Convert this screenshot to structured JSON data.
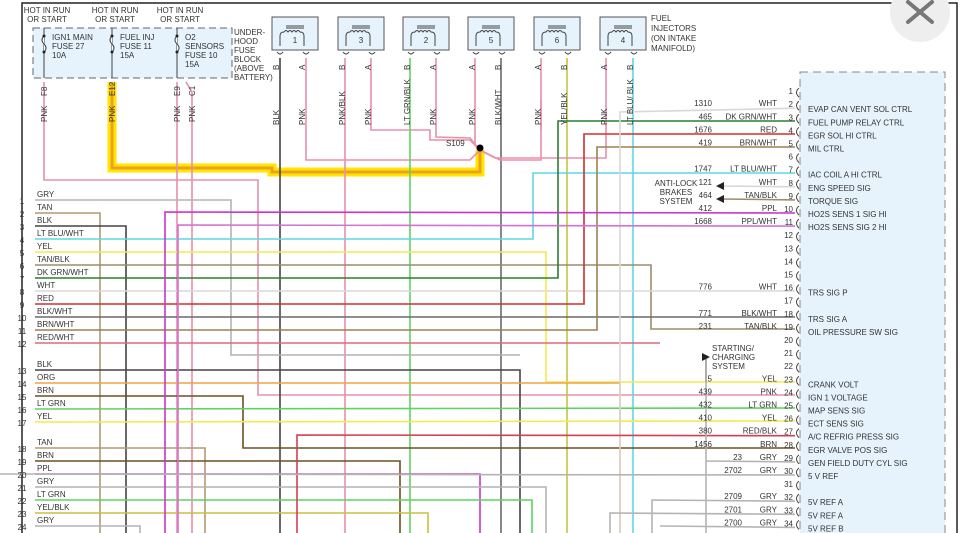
{
  "fuse_block": {
    "hot_labels": [
      [
        "HOT IN RUN",
        "OR START"
      ],
      [
        "HOT IN RUN",
        "OR START"
      ],
      [
        "HOT IN RUN",
        "OR START"
      ]
    ],
    "fuses": [
      {
        "lines": [
          "IGN1 MAIN",
          "FUSE 27",
          "10A"
        ]
      },
      {
        "lines": [
          "FUEL INJ",
          "FUSE 11",
          "15A"
        ]
      },
      {
        "lines": [
          "O2",
          "SENSORS",
          "FUSE 10",
          "15A"
        ]
      }
    ],
    "label": [
      "UNDER-",
      "HOOD",
      "FUSE",
      "BLOCK",
      "(ABOVE",
      "BATTERY)"
    ],
    "pins": [
      {
        "pin": "F8",
        "color": "PNK"
      },
      {
        "pin": "E12",
        "color": "PNK",
        "highlighted": true
      },
      {
        "pin": "E9",
        "color": "PNK"
      },
      {
        "pin": "C1",
        "color": "PNK"
      }
    ]
  },
  "injectors": {
    "label": [
      "FUEL",
      "INJECTORS",
      "(ON INTAKE",
      "MANIFOLD)"
    ],
    "items": [
      {
        "num": "1",
        "pins": [
          {
            "pin": "B",
            "color": "BLK"
          },
          {
            "pin": "A",
            "color": "PNK"
          }
        ]
      },
      {
        "num": "3",
        "pins": [
          {
            "pin": "B",
            "color": "PNK/BLK"
          },
          {
            "pin": "A",
            "color": "PNK"
          }
        ]
      },
      {
        "num": "2",
        "pins": [
          {
            "pin": "B",
            "color": "LT GRN/BLK"
          },
          {
            "pin": "A",
            "color": "PNK"
          }
        ]
      },
      {
        "num": "5",
        "pins": [
          {
            "pin": "A",
            "color": "PNK"
          },
          {
            "pin": "B",
            "color": "BLK/WHT"
          }
        ]
      },
      {
        "num": "6",
        "pins": [
          {
            "pin": "A",
            "color": "PNK"
          },
          {
            "pin": "B",
            "color": "YEL/BLK"
          }
        ]
      },
      {
        "num": "4",
        "pins": [
          {
            "pin": "A",
            "color": "PNK"
          },
          {
            "pin": "B",
            "color": "LT BLU/ BLK"
          }
        ]
      }
    ]
  },
  "splice": "S109",
  "left_connector": [
    {
      "num": "1",
      "color": "GRY"
    },
    {
      "num": "2",
      "color": "TAN"
    },
    {
      "num": "3",
      "color": "BLK"
    },
    {
      "num": "4",
      "color": "LT BLU/WHT"
    },
    {
      "num": "5",
      "color": "YEL"
    },
    {
      "num": "6",
      "color": "TAN/BLK"
    },
    {
      "num": "7",
      "color": "DK GRN/WHT"
    },
    {
      "num": "8",
      "color": "WHT"
    },
    {
      "num": "9",
      "color": "RED"
    },
    {
      "num": "10",
      "color": "BLK/WHT"
    },
    {
      "num": "11",
      "color": "BRN/WHT"
    },
    {
      "num": "12",
      "color": "RED/WHT"
    },
    {
      "num": "13",
      "color": "BLK"
    },
    {
      "num": "14",
      "color": "ORG"
    },
    {
      "num": "15",
      "color": "BRN"
    },
    {
      "num": "16",
      "color": "LT GRN"
    },
    {
      "num": "17",
      "color": "YEL"
    },
    {
      "num": "18",
      "color": "TAN"
    },
    {
      "num": "19",
      "color": "BRN"
    },
    {
      "num": "20",
      "color": "PPL"
    },
    {
      "num": "21",
      "color": "GRY"
    },
    {
      "num": "22",
      "color": "LT GRN"
    },
    {
      "num": "23",
      "color": "YEL/BLK"
    },
    {
      "num": "24",
      "color": "GRY"
    }
  ],
  "module_pins": [
    {
      "pin": "1",
      "circuit": "",
      "color": "",
      "function": ""
    },
    {
      "pin": "2",
      "circuit": "1310",
      "color": "WHT",
      "function": "EVAP CAN VENT SOL CTRL"
    },
    {
      "pin": "3",
      "circuit": "465",
      "color": "DK GRN/WHT",
      "function": "FUEL PUMP RELAY CTRL"
    },
    {
      "pin": "4",
      "circuit": "1676",
      "color": "RED",
      "function": "EGR SOL HI CTRL"
    },
    {
      "pin": "5",
      "circuit": "419",
      "color": "BRN/WHT",
      "function": "MIL CTRL"
    },
    {
      "pin": "6",
      "circuit": "",
      "color": "",
      "function": ""
    },
    {
      "pin": "7",
      "circuit": "1747",
      "color": "LT BLU/WHT",
      "function": "IAC COIL A HI CTRL"
    },
    {
      "pin": "8",
      "circuit": "121",
      "color": "WHT",
      "function": "ENG SPEED SIG"
    },
    {
      "pin": "9",
      "circuit": "464",
      "color": "TAN/BLK",
      "function": "TORQUE SIG"
    },
    {
      "pin": "10",
      "circuit": "412",
      "color": "PPL",
      "function": "HO2S SENS 1 SIG HI"
    },
    {
      "pin": "11",
      "circuit": "1668",
      "color": "PPL/WHT",
      "function": "HO2S SENS SIG 2 HI"
    },
    {
      "pin": "12",
      "circuit": "",
      "color": "",
      "function": ""
    },
    {
      "pin": "13",
      "circuit": "",
      "color": "",
      "function": ""
    },
    {
      "pin": "14",
      "circuit": "",
      "color": "",
      "function": ""
    },
    {
      "pin": "15",
      "circuit": "",
      "color": "",
      "function": ""
    },
    {
      "pin": "16",
      "circuit": "776",
      "color": "WHT",
      "function": "TRS SIG P"
    },
    {
      "pin": "17",
      "circuit": "",
      "color": "",
      "function": ""
    },
    {
      "pin": "18",
      "circuit": "771",
      "color": "BLK/WHT",
      "function": "TRS SIG A"
    },
    {
      "pin": "19",
      "circuit": "231",
      "color": "TAN/BLK",
      "function": "OIL PRESSURE SW SIG"
    },
    {
      "pin": "20",
      "circuit": "",
      "color": "",
      "function": ""
    },
    {
      "pin": "21",
      "circuit": "",
      "color": "",
      "function": ""
    },
    {
      "pin": "22",
      "circuit": "",
      "color": "",
      "function": ""
    },
    {
      "pin": "23",
      "circuit": "5",
      "color": "YEL",
      "function": "CRANK VOLT"
    },
    {
      "pin": "24",
      "circuit": "439",
      "color": "PNK",
      "function": "IGN 1 VOLTAGE"
    },
    {
      "pin": "25",
      "circuit": "432",
      "color": "LT GRN",
      "function": "MAP SENS SIG"
    },
    {
      "pin": "26",
      "circuit": "410",
      "color": "YEL",
      "function": "ECT SENS SIG"
    },
    {
      "pin": "27",
      "circuit": "380",
      "color": "RED/BLK",
      "function": "A/C REFRIG PRESS SIG"
    },
    {
      "pin": "28",
      "circuit": "1456",
      "color": "BRN",
      "function": "EGR VALVE POS SIG"
    },
    {
      "pin": "29",
      "circuit": "23",
      "color": "GRY",
      "function": "GEN FIELD DUTY CYL SIG"
    },
    {
      "pin": "30",
      "circuit": "2702",
      "color": "GRY",
      "function": "5 V REF"
    },
    {
      "pin": "31",
      "circuit": "",
      "color": "",
      "function": ""
    },
    {
      "pin": "32",
      "circuit": "2709",
      "color": "GRY",
      "function": "5V REF A"
    },
    {
      "pin": "33",
      "circuit": "2701",
      "color": "GRY",
      "function": "5V REF A"
    },
    {
      "pin": "34",
      "circuit": "2700",
      "color": "GRY",
      "function": "5V REF B"
    }
  ],
  "external_labels": {
    "anti_lock": [
      "ANTI-LOCK",
      "BRAKES",
      "SYSTEM"
    ],
    "starting_charging": [
      "STARTING/",
      "CHARGING",
      "SYSTEM"
    ]
  },
  "wire_colors": {
    "GRY": "#b4b4b4",
    "TAN": "#b09a72",
    "BLK": "#444444",
    "LT BLU/WHT": "#5fd8e4",
    "YEL": "#f4ea4c",
    "TAN/BLK": "#9c8c6a",
    "DK GRN/WHT": "#2e7d32",
    "WHT": "#d8d8d8",
    "RED": "#d32f2f",
    "BLK/WHT": "#6a6a6a",
    "BRN/WHT": "#9c8150",
    "RED/WHT": "#e06878",
    "ORG": "#f2a444",
    "BRN": "#6b5020",
    "LT GRN": "#5fd35f",
    "PPL": "#cc33cc",
    "YEL/BLK": "#c9c13e",
    "PNK": "#e890a8",
    "PPL/WHT": "#d272d2",
    "RED/BLK": "#d04050",
    "LT GRN/BLK": "#5fd35f",
    "PNK/BLK": "#e890a8",
    "LT BLU/ BLK": "#5fd8e4"
  },
  "highlight_color": "#ffe600",
  "module_fill": "#e6f3fc",
  "close_button": {
    "icon": "close-icon"
  }
}
